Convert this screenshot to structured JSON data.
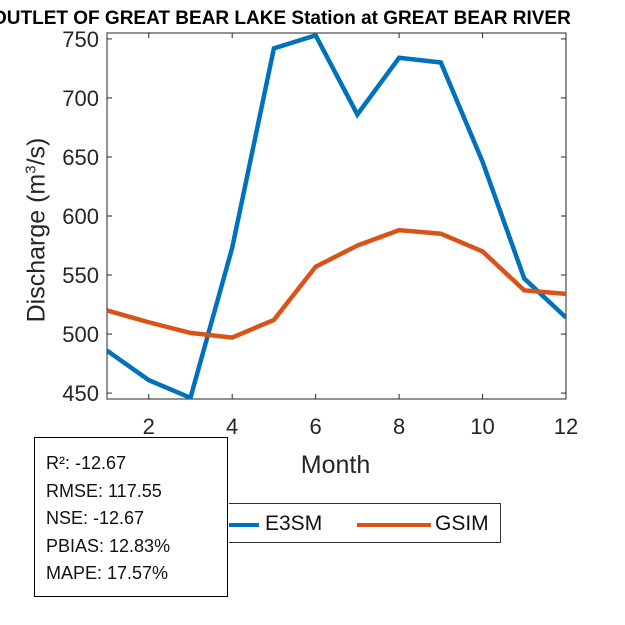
{
  "chart_data": {
    "type": "line",
    "title": "OUTLET OF GREAT BEAR LAKE  Station at  GREAT BEAR RIVER",
    "xlabel": "Month",
    "ylabel_prefix": "Discharge (m",
    "ylabel_sup": "3",
    "ylabel_suffix": "/s)",
    "xlim": [
      1,
      12
    ],
    "ylim": [
      445,
      755
    ],
    "xticks": [
      2,
      4,
      6,
      8,
      10,
      12
    ],
    "yticks": [
      450,
      500,
      550,
      600,
      650,
      700,
      750
    ],
    "x": [
      1,
      2,
      3,
      4,
      5,
      6,
      7,
      8,
      9,
      10,
      11,
      12
    ],
    "series": [
      {
        "name": "E3SM",
        "color": "#0072bd",
        "values": [
          486,
          461,
          446,
          573,
          742,
          753,
          686,
          734,
          730,
          646,
          547,
          514
        ]
      },
      {
        "name": "GSIM",
        "color": "#d95319",
        "values": [
          520,
          510,
          501,
          497,
          512,
          557,
          575,
          588,
          585,
          570,
          537,
          534
        ]
      }
    ]
  },
  "stats": {
    "r2": "R²: -12.67",
    "rmse": "RMSE: 117.55",
    "nse": "NSE: -12.67",
    "pbias": "PBIAS: 12.83%",
    "mape": "MAPE: 17.57%"
  }
}
